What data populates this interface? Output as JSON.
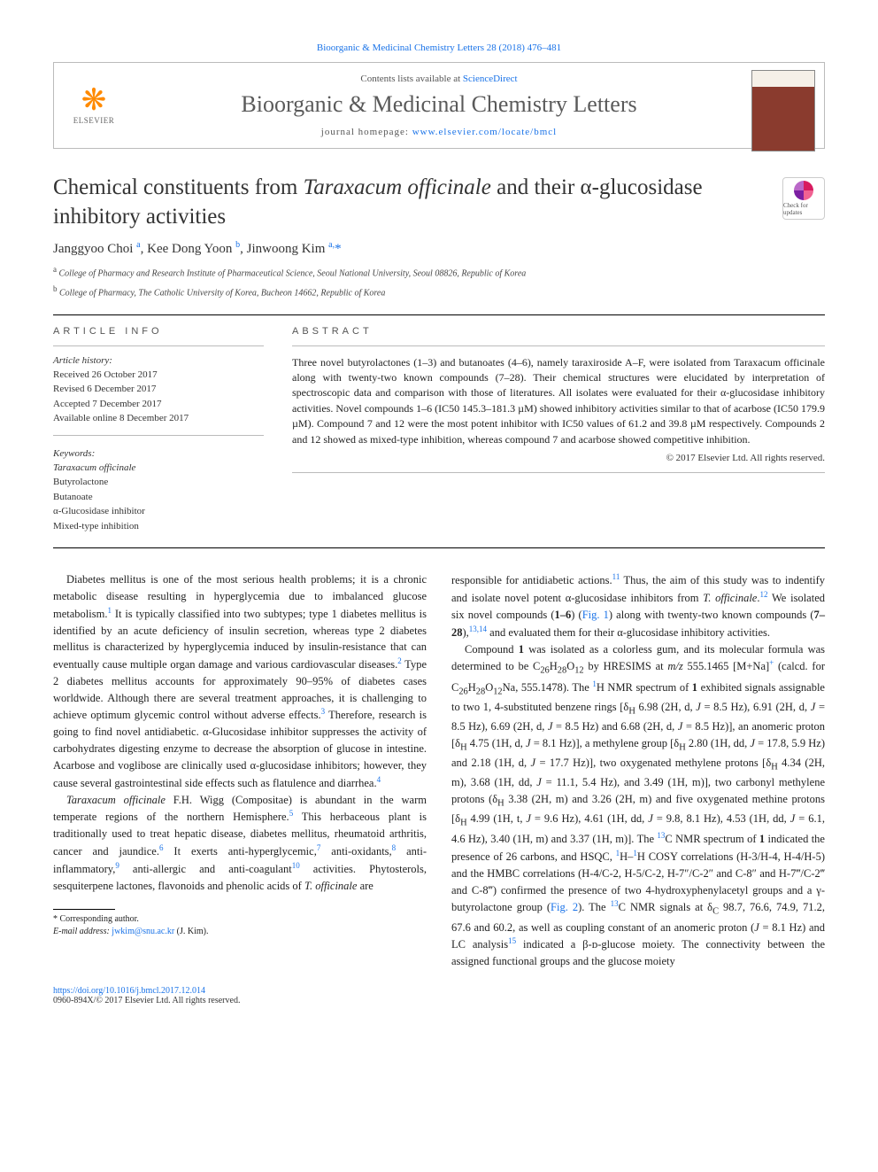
{
  "header": {
    "citation": "Bioorganic & Medicinal Chemistry Letters 28 (2018) 476–481",
    "contents_prefix": "Contents lists available at ",
    "contents_link": "ScienceDirect",
    "journal_title": "Bioorganic & Medicinal Chemistry Letters",
    "homepage_prefix": "journal homepage: ",
    "homepage_url": "www.elsevier.com/locate/bmcl",
    "publisher": "ELSEVIER"
  },
  "article": {
    "title_html": "Chemical constituents from <em>Taraxacum officinale</em> and their α-glucosidase inhibitory activities",
    "updates_label": "Check for updates",
    "authors_html": "Janggyoo Choi <sup>a</sup>, Kee Dong Yoon <sup>b</sup>, Jinwoong Kim <sup>a,</sup><span class='star'>*</span>",
    "affiliations": [
      "a College of Pharmacy and Research Institute of Pharmaceutical Science, Seoul National University, Seoul 08826, Republic of Korea",
      "b College of Pharmacy, The Catholic University of Korea, Bucheon 14662, Republic of Korea"
    ]
  },
  "info": {
    "header": "ARTICLE INFO",
    "history_label": "Article history:",
    "history": [
      "Received 26 October 2017",
      "Revised 6 December 2017",
      "Accepted 7 December 2017",
      "Available online 8 December 2017"
    ],
    "keywords_label": "Keywords:",
    "keywords": [
      "Taraxacum officinale",
      "Butyrolactone",
      "Butanoate",
      "α-Glucosidase inhibitor",
      "Mixed-type inhibition"
    ]
  },
  "abstract": {
    "header": "ABSTRACT",
    "text": "Three novel butyrolactones (1–3) and butanoates (4–6), namely taraxiroside A–F, were isolated from Taraxacum officinale along with twenty-two known compounds (7–28). Their chemical structures were elucidated by interpretation of spectroscopic data and comparison with those of literatures. All isolates were evaluated for their α-glucosidase inhibitory activities. Novel compounds 1–6 (IC50 145.3–181.3 µM) showed inhibitory activities similar to that of acarbose (IC50 179.9 µM). Compound 7 and 12 were the most potent inhibitor with IC50 values of 61.2 and 39.8 µM respectively. Compounds 2 and 12 showed as mixed-type inhibition, whereas compound 7 and acarbose showed competitive inhibition.",
    "copyright": "© 2017 Elsevier Ltd. All rights reserved."
  },
  "body": {
    "left": [
      "Diabetes mellitus is one of the most serious health problems; it is a chronic metabolic disease resulting in hyperglycemia due to imbalanced glucose metabolism.<sup>1</sup> It is typically classified into two subtypes; type 1 diabetes mellitus is identified by an acute deficiency of insulin secretion, whereas type 2 diabetes mellitus is characterized by hyperglycemia induced by insulin-resistance that can eventually cause multiple organ damage and various cardiovascular diseases.<sup>2</sup> Type 2 diabetes mellitus accounts for approximately 90–95% of diabetes cases worldwide. Although there are several treatment approaches, it is challenging to achieve optimum glycemic control without adverse effects.<sup>3</sup> Therefore, research is going to find novel antidiabetic. α-Glucosidase inhibitor suppresses the activity of carbohydrates digesting enzyme to decrease the absorption of glucose in intestine. Acarbose and voglibose are clinically used α-glucosidase inhibitors; however, they cause several gastrointestinal side effects such as flatulence and diarrhea.<sup>4</sup>",
      "<em>Taraxacum officinale</em> F.H. Wigg (Compositae) is abundant in the warm temperate regions of the northern Hemisphere.<sup>5</sup> This herbaceous plant is traditionally used to treat hepatic disease, diabetes mellitus, rheumatoid arthritis, cancer and jaundice.<sup>6</sup> It exerts anti-hyperglycemic,<sup>7</sup> anti-oxidants,<sup>8</sup> anti-inflammatory,<sup>9</sup> anti-allergic and anti-coagulant<sup>10</sup> activities. Phytosterols, sesquiterpene lactones, flavonoids and phenolic acids of <em>T. officinale</em> are"
    ],
    "right": [
      "responsible for antidiabetic actions.<sup>11</sup> Thus, the aim of this study was to indentify and isolate novel potent α-glucosidase inhibitors from <em>T. officinale</em>.<sup>12</sup> We isolated six novel compounds (<strong>1–6</strong>) (<a>Fig. 1</a>) along with twenty-two known compounds (<strong>7–28</strong>),<sup>13,14</sup> and evaluated them for their α-glucosidase inhibitory activities.",
      "Compound <strong>1</strong> was isolated as a colorless gum, and its molecular formula was determined to be C<sub>26</sub>H<sub>28</sub>O<sub>12</sub> by HRESIMS at <em>m/z</em> 555.1465 [M+Na]<sup>+</sup> (calcd. for C<sub>26</sub>H<sub>28</sub>O<sub>12</sub>Na, 555.1478). The <sup>1</sup>H NMR spectrum of <strong>1</strong> exhibited signals assignable to two 1, 4-substituted benzene rings [δ<sub>H</sub> 6.98 (2H, d, <em>J</em> = 8.5 Hz), 6.91 (2H, d, <em>J</em> = 8.5 Hz), 6.69 (2H, d, <em>J</em> = 8.5 Hz) and 6.68 (2H, d, <em>J</em> = 8.5 Hz)], an anomeric proton [δ<sub>H</sub> 4.75 (1H, d, <em>J</em> = 8.1 Hz)], a methylene group [δ<sub>H</sub> 2.80 (1H, dd, <em>J</em> = 17.8, 5.9 Hz) and 2.18 (1H, d, <em>J</em> = 17.7 Hz)], two oxygenated methylene protons [δ<sub>H</sub> 4.34 (2H, m), 3.68 (1H, dd, <em>J</em> = 11.1, 5.4 Hz), and 3.49 (1H, m)], two carbonyl methylene protons (δ<sub>H</sub> 3.38 (2H, m) and 3.26 (2H, m) and five oxygenated methine protons [δ<sub>H</sub> 4.99 (1H, t, <em>J</em> = 9.6 Hz), 4.61 (1H, dd, <em>J</em> = 9.8, 8.1 Hz), 4.53 (1H, dd, <em>J</em> = 6.1, 4.6 Hz), 3.40 (1H, m) and 3.37 (1H, m)]. The <sup>13</sup>C NMR spectrum of <strong>1</strong> indicated the presence of 26 carbons, and HSQC, <sup>1</sup>H–<sup>1</sup>H COSY correlations (H-3/H-4, H-4/H-5) and the HMBC correlations (H-4/C-2, H-5/C-2, H-7″/C-2″ and C-8″ and H-7‴/C-2‴ and C-8‴) confirmed the presence of two 4-hydroxyphenylacetyl groups and a γ-butyrolactone group (<a>Fig. 2</a>). The <sup>13</sup>C NMR signals at δ<sub>C</sub> 98.7, 76.6, 74.9, 71.2, 67.6 and 60.2, as well as coupling constant of an anomeric proton (<em>J</em> = 8.1 Hz) and LC analysis<sup>15</sup> indicated a β-ᴅ-glucose moiety. The connectivity between the assigned functional groups and the glucose moiety"
    ]
  },
  "footnote": {
    "corresponding": "* Corresponding author.",
    "email_label": "E-mail address:",
    "email": "jwkim@snu.ac.kr",
    "email_suffix": "(J. Kim)."
  },
  "footer": {
    "doi": "https://doi.org/10.1016/j.bmcl.2017.12.014",
    "issn_line": "0960-894X/© 2017 Elsevier Ltd. All rights reserved."
  },
  "colors": {
    "link": "#1a73e8",
    "logo_orange": "#ff8a00",
    "rule": "#000000",
    "thin_rule": "#bbbbbb",
    "text": "#222222"
  }
}
